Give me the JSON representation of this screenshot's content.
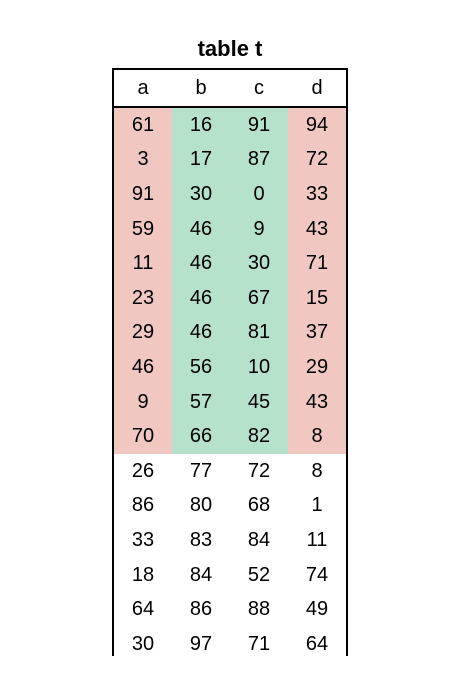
{
  "title": "table t",
  "columns": [
    "a",
    "b",
    "c",
    "d"
  ],
  "colors": {
    "red": "#f1c7c2",
    "green": "#b6e1cb",
    "white": "#ffffff"
  },
  "highlighted_rows": 10,
  "column_highlight": [
    "red",
    "green",
    "green",
    "red"
  ],
  "rows": [
    [
      "61",
      "16",
      "91",
      "94"
    ],
    [
      "3",
      "17",
      "87",
      "72"
    ],
    [
      "91",
      "30",
      "0",
      "33"
    ],
    [
      "59",
      "46",
      "9",
      "43"
    ],
    [
      "11",
      "46",
      "30",
      "71"
    ],
    [
      "23",
      "46",
      "67",
      "15"
    ],
    [
      "29",
      "46",
      "81",
      "37"
    ],
    [
      "46",
      "56",
      "10",
      "29"
    ],
    [
      "9",
      "57",
      "45",
      "43"
    ],
    [
      "70",
      "66",
      "82",
      "8"
    ],
    [
      "26",
      "77",
      "72",
      "8"
    ],
    [
      "86",
      "80",
      "68",
      "1"
    ],
    [
      "33",
      "83",
      "84",
      "11"
    ],
    [
      "18",
      "84",
      "52",
      "74"
    ],
    [
      "64",
      "86",
      "88",
      "49"
    ],
    [
      "30",
      "97",
      "71",
      "64"
    ]
  ]
}
